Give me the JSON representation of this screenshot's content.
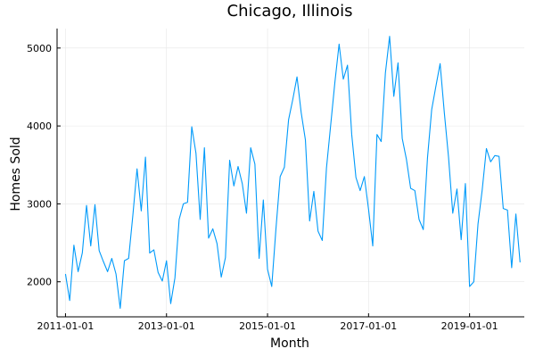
{
  "chart_data": {
    "type": "line",
    "title": "Chicago, Illinois",
    "xlabel": "Month",
    "ylabel": "Homes Sold",
    "x_ticks": [
      "2011-01-01",
      "2013-01-01",
      "2015-01-01",
      "2017-01-01",
      "2019-01-01"
    ],
    "y_ticks": [
      2000,
      3000,
      4000,
      5000
    ],
    "xlim": [
      "2010-11-01",
      "2020-02-01"
    ],
    "ylim": [
      1550,
      5250
    ],
    "grid": true,
    "legend": "none",
    "colors": {
      "line": "#009AFA"
    },
    "series": [
      {
        "values": [
          2100,
          1760,
          2470,
          2130,
          2370,
          2980,
          2460,
          2990,
          2400,
          2260,
          2130,
          2300,
          2100,
          1660,
          2270,
          2300,
          2850,
          3450,
          2910,
          3600,
          2370,
          2410,
          2120,
          2010,
          2270,
          1720,
          2050,
          2800,
          3000,
          3020,
          3990,
          3650,
          2800,
          3720,
          2560,
          2680,
          2490,
          2060,
          2310,
          3560,
          3230,
          3480,
          3260,
          2880,
          3720,
          3510,
          2300,
          3050,
          2160,
          1940,
          2680,
          3350,
          3470,
          4080,
          4340,
          4630,
          4170,
          3820,
          2780,
          3160,
          2650,
          2530,
          3460,
          4010,
          4560,
          5050,
          4600,
          4780,
          3890,
          3340,
          3170,
          3350,
          2930,
          2460,
          3890,
          3800,
          4680,
          5150,
          4380,
          4810,
          3840,
          3570,
          3200,
          3170,
          2800,
          2670,
          3590,
          4210,
          4510,
          4800,
          4170,
          3600,
          2880,
          3190,
          2540,
          3260,
          1940,
          2000,
          2740,
          3180,
          3710,
          3540,
          3620,
          3610,
          2940,
          2920,
          2180,
          2870,
          2250
        ]
      }
    ]
  }
}
